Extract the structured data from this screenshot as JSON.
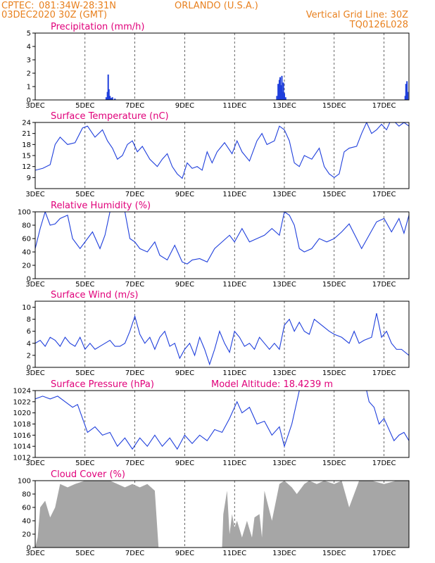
{
  "header": {
    "source": "CPTEC:",
    "coords": "081:34W-28:31N",
    "location": "ORLANDO (U.S.A.)",
    "run": "03DEC2020 30Z (GMT)",
    "grid_note": "Vertical Grid Line: 30Z",
    "code": "TQ0126L028"
  },
  "x_axis": {
    "start_day": 3,
    "end_day": 18,
    "tick_labels": [
      {
        "label": "3DEC",
        "day": 3
      },
      {
        "label": "5DEC",
        "day": 5
      },
      {
        "label": "7DEC",
        "day": 7
      },
      {
        "label": "9DEC",
        "day": 9
      },
      {
        "label": "11DEC",
        "day": 11
      },
      {
        "label": "13DEC",
        "day": 13
      },
      {
        "label": "15DEC",
        "day": 15
      },
      {
        "label": "17DEC",
        "day": 17
      }
    ]
  },
  "chart_data": [
    {
      "id": "precip",
      "type": "bar",
      "title": "Precipitation (mm/h)",
      "ylim": [
        0,
        5
      ],
      "yticks": [
        0,
        1,
        2,
        3,
        4,
        5
      ],
      "color": "#1f3fdc",
      "values": [
        [
          5.85,
          0.2
        ],
        [
          5.9,
          0.6
        ],
        [
          5.93,
          1.9
        ],
        [
          5.96,
          0.8
        ],
        [
          6.0,
          0.3
        ],
        [
          6.05,
          0.15
        ],
        [
          6.1,
          0.2
        ],
        [
          6.2,
          0.1
        ],
        [
          12.7,
          0.3
        ],
        [
          12.75,
          1.2
        ],
        [
          12.78,
          0.8
        ],
        [
          12.8,
          1.5
        ],
        [
          12.83,
          1.7
        ],
        [
          12.86,
          1.1
        ],
        [
          12.9,
          1.8
        ],
        [
          12.93,
          0.6
        ],
        [
          12.96,
          1.3
        ],
        [
          13.0,
          0.5
        ],
        [
          13.05,
          0.2
        ],
        [
          17.85,
          0.3
        ],
        [
          17.88,
          1.2
        ],
        [
          17.92,
          1.4
        ],
        [
          17.95,
          0.6
        ]
      ]
    },
    {
      "id": "temp",
      "type": "line",
      "title": "Surface Temperature (nC)",
      "ylim": [
        6,
        24
      ],
      "yticks": [
        9,
        12,
        15,
        18,
        21,
        24
      ],
      "color": "#1f3fdc",
      "values": [
        [
          3,
          11
        ],
        [
          3.3,
          11.5
        ],
        [
          3.6,
          12.5
        ],
        [
          3.8,
          18
        ],
        [
          4.0,
          20
        ],
        [
          4.3,
          18
        ],
        [
          4.6,
          18.5
        ],
        [
          4.9,
          22.5
        ],
        [
          5.1,
          23
        ],
        [
          5.4,
          20
        ],
        [
          5.7,
          22
        ],
        [
          5.9,
          19
        ],
        [
          6.1,
          17
        ],
        [
          6.3,
          14
        ],
        [
          6.5,
          15
        ],
        [
          6.7,
          18
        ],
        [
          6.9,
          19
        ],
        [
          7.1,
          16
        ],
        [
          7.3,
          17.5
        ],
        [
          7.6,
          14
        ],
        [
          7.9,
          12
        ],
        [
          8.1,
          14
        ],
        [
          8.3,
          15.5
        ],
        [
          8.5,
          12
        ],
        [
          8.7,
          10
        ],
        [
          8.9,
          8.8
        ],
        [
          9.1,
          13
        ],
        [
          9.3,
          11.5
        ],
        [
          9.5,
          12
        ],
        [
          9.7,
          11
        ],
        [
          9.9,
          16
        ],
        [
          10.1,
          13
        ],
        [
          10.3,
          16
        ],
        [
          10.6,
          18.5
        ],
        [
          10.9,
          15.5
        ],
        [
          11.1,
          19
        ],
        [
          11.3,
          16
        ],
        [
          11.6,
          13.5
        ],
        [
          11.9,
          19
        ],
        [
          12.1,
          21
        ],
        [
          12.3,
          18
        ],
        [
          12.6,
          19
        ],
        [
          12.8,
          23
        ],
        [
          13.0,
          22
        ],
        [
          13.2,
          19
        ],
        [
          13.4,
          13
        ],
        [
          13.6,
          12
        ],
        [
          13.8,
          15
        ],
        [
          14.1,
          14
        ],
        [
          14.4,
          17
        ],
        [
          14.6,
          12
        ],
        [
          14.8,
          10
        ],
        [
          15.0,
          9
        ],
        [
          15.2,
          10
        ],
        [
          15.4,
          16
        ],
        [
          15.6,
          17
        ],
        [
          15.9,
          17.5
        ],
        [
          16.1,
          21
        ],
        [
          16.3,
          24
        ],
        [
          16.5,
          21
        ],
        [
          16.7,
          22
        ],
        [
          16.9,
          23.5
        ],
        [
          17.1,
          22
        ],
        [
          17.3,
          25
        ],
        [
          17.6,
          23
        ],
        [
          17.8,
          24
        ],
        [
          18,
          23
        ]
      ]
    },
    {
      "id": "rh",
      "type": "line",
      "title": "Relative Humidity (%)",
      "ylim": [
        0,
        100
      ],
      "yticks": [
        0,
        20,
        40,
        60,
        80,
        100
      ],
      "color": "#1f3fdc",
      "values": [
        [
          3,
          45
        ],
        [
          3.2,
          75
        ],
        [
          3.4,
          100
        ],
        [
          3.6,
          80
        ],
        [
          3.8,
          82
        ],
        [
          4.0,
          90
        ],
        [
          4.3,
          95
        ],
        [
          4.5,
          60
        ],
        [
          4.8,
          45
        ],
        [
          5.0,
          55
        ],
        [
          5.3,
          70
        ],
        [
          5.6,
          45
        ],
        [
          5.8,
          65
        ],
        [
          6.0,
          100
        ],
        [
          6.2,
          100
        ],
        [
          6.4,
          100
        ],
        [
          6.6,
          100
        ],
        [
          6.8,
          60
        ],
        [
          7.0,
          55
        ],
        [
          7.2,
          45
        ],
        [
          7.5,
          40
        ],
        [
          7.8,
          55
        ],
        [
          8.0,
          35
        ],
        [
          8.3,
          28
        ],
        [
          8.6,
          50
        ],
        [
          8.9,
          25
        ],
        [
          9.1,
          22
        ],
        [
          9.3,
          28
        ],
        [
          9.6,
          30
        ],
        [
          9.9,
          25
        ],
        [
          10.2,
          45
        ],
        [
          10.5,
          55
        ],
        [
          10.8,
          65
        ],
        [
          11.0,
          55
        ],
        [
          11.3,
          75
        ],
        [
          11.6,
          55
        ],
        [
          11.9,
          60
        ],
        [
          12.2,
          65
        ],
        [
          12.5,
          75
        ],
        [
          12.8,
          65
        ],
        [
          13.0,
          100
        ],
        [
          13.2,
          95
        ],
        [
          13.4,
          80
        ],
        [
          13.6,
          45
        ],
        [
          13.8,
          40
        ],
        [
          14.1,
          45
        ],
        [
          14.4,
          60
        ],
        [
          14.7,
          55
        ],
        [
          15.0,
          60
        ],
        [
          15.3,
          70
        ],
        [
          15.6,
          82
        ],
        [
          15.9,
          60
        ],
        [
          16.1,
          45
        ],
        [
          16.4,
          65
        ],
        [
          16.7,
          85
        ],
        [
          17.0,
          90
        ],
        [
          17.3,
          70
        ],
        [
          17.6,
          90
        ],
        [
          17.8,
          68
        ],
        [
          18,
          95
        ]
      ]
    },
    {
      "id": "wind",
      "type": "line",
      "title": "Surface Wind (m/s)",
      "ylim": [
        0,
        11
      ],
      "yticks": [
        0,
        2,
        4,
        6,
        8,
        10
      ],
      "color": "#1f3fdc",
      "values": [
        [
          3,
          4
        ],
        [
          3.2,
          4.5
        ],
        [
          3.4,
          3.5
        ],
        [
          3.6,
          5
        ],
        [
          3.8,
          4.5
        ],
        [
          4.0,
          3.5
        ],
        [
          4.2,
          5
        ],
        [
          4.4,
          4
        ],
        [
          4.6,
          3.5
        ],
        [
          4.8,
          5
        ],
        [
          5.0,
          3
        ],
        [
          5.2,
          4
        ],
        [
          5.4,
          3
        ],
        [
          5.6,
          3.5
        ],
        [
          5.8,
          4
        ],
        [
          6.0,
          4.5
        ],
        [
          6.2,
          3.5
        ],
        [
          6.4,
          3.5
        ],
        [
          6.6,
          4
        ],
        [
          6.8,
          6
        ],
        [
          7.0,
          8.5
        ],
        [
          7.2,
          5.5
        ],
        [
          7.4,
          4
        ],
        [
          7.6,
          5
        ],
        [
          7.8,
          3
        ],
        [
          8.0,
          5
        ],
        [
          8.2,
          6
        ],
        [
          8.4,
          3.5
        ],
        [
          8.6,
          4
        ],
        [
          8.8,
          1.5
        ],
        [
          9.0,
          3
        ],
        [
          9.2,
          4
        ],
        [
          9.4,
          2
        ],
        [
          9.6,
          5
        ],
        [
          9.8,
          3
        ],
        [
          10.0,
          0.5
        ],
        [
          10.2,
          3
        ],
        [
          10.4,
          6
        ],
        [
          10.6,
          4
        ],
        [
          10.8,
          2.5
        ],
        [
          11.0,
          6
        ],
        [
          11.2,
          5
        ],
        [
          11.4,
          3.5
        ],
        [
          11.6,
          4
        ],
        [
          11.8,
          3
        ],
        [
          12.0,
          5
        ],
        [
          12.2,
          4
        ],
        [
          12.4,
          3
        ],
        [
          12.6,
          4
        ],
        [
          12.8,
          3
        ],
        [
          13.0,
          7
        ],
        [
          13.2,
          8
        ],
        [
          13.4,
          6
        ],
        [
          13.6,
          7.5
        ],
        [
          13.8,
          6
        ],
        [
          14.0,
          5.5
        ],
        [
          14.2,
          8
        ],
        [
          14.5,
          7
        ],
        [
          14.8,
          6
        ],
        [
          15.0,
          5.5
        ],
        [
          15.3,
          5
        ],
        [
          15.6,
          4
        ],
        [
          15.8,
          6
        ],
        [
          16.0,
          4
        ],
        [
          16.2,
          4.5
        ],
        [
          16.5,
          5
        ],
        [
          16.7,
          9
        ],
        [
          16.9,
          5
        ],
        [
          17.1,
          6
        ],
        [
          17.3,
          4
        ],
        [
          17.5,
          3
        ],
        [
          17.7,
          3
        ],
        [
          18,
          2
        ]
      ]
    },
    {
      "id": "pressure",
      "type": "line",
      "title": "Surface Pressure (hPa)",
      "annotation": "Model Altitude: 18.4239  m",
      "ylim": [
        1012,
        1024
      ],
      "yticks": [
        1012,
        1014,
        1016,
        1018,
        1020,
        1022,
        1024
      ],
      "color": "#1f3fdc",
      "values": [
        [
          3,
          1022.5
        ],
        [
          3.3,
          1023
        ],
        [
          3.6,
          1022.5
        ],
        [
          3.9,
          1023
        ],
        [
          4.2,
          1022
        ],
        [
          4.5,
          1021
        ],
        [
          4.7,
          1021.5
        ],
        [
          4.9,
          1019
        ],
        [
          5.1,
          1016.5
        ],
        [
          5.4,
          1017.5
        ],
        [
          5.7,
          1016
        ],
        [
          6.0,
          1016.5
        ],
        [
          6.3,
          1014
        ],
        [
          6.6,
          1015.5
        ],
        [
          6.9,
          1013.5
        ],
        [
          7.2,
          1015.5
        ],
        [
          7.5,
          1014
        ],
        [
          7.8,
          1016
        ],
        [
          8.1,
          1014
        ],
        [
          8.4,
          1015.5
        ],
        [
          8.7,
          1013.5
        ],
        [
          9.0,
          1016
        ],
        [
          9.3,
          1014.5
        ],
        [
          9.6,
          1016
        ],
        [
          9.9,
          1015
        ],
        [
          10.2,
          1017
        ],
        [
          10.5,
          1016.5
        ],
        [
          10.8,
          1019
        ],
        [
          11.1,
          1022
        ],
        [
          11.3,
          1020
        ],
        [
          11.6,
          1021
        ],
        [
          11.9,
          1018
        ],
        [
          12.2,
          1018.5
        ],
        [
          12.5,
          1016
        ],
        [
          12.8,
          1017.5
        ],
        [
          13.0,
          1014
        ],
        [
          13.3,
          1018
        ],
        [
          13.6,
          1024
        ],
        [
          14,
          1026
        ],
        [
          16.2,
          1026
        ],
        [
          16.4,
          1022
        ],
        [
          16.6,
          1021
        ],
        [
          16.8,
          1018
        ],
        [
          17.0,
          1019
        ],
        [
          17.2,
          1017
        ],
        [
          17.4,
          1015
        ],
        [
          17.6,
          1016
        ],
        [
          17.8,
          1016.5
        ],
        [
          18,
          1015
        ]
      ]
    },
    {
      "id": "cloud",
      "type": "area",
      "title": "Cloud Cover (%)",
      "ylim": [
        0,
        100
      ],
      "yticks": [
        0,
        20,
        40,
        60,
        80,
        100
      ],
      "color": "#a6a6a6",
      "values": [
        [
          3,
          0
        ],
        [
          3.1,
          15
        ],
        [
          3.2,
          60
        ],
        [
          3.4,
          70
        ],
        [
          3.6,
          45
        ],
        [
          3.8,
          60
        ],
        [
          4.0,
          95
        ],
        [
          4.3,
          90
        ],
        [
          4.6,
          95
        ],
        [
          5.0,
          100
        ],
        [
          5.5,
          100
        ],
        [
          6.0,
          100
        ],
        [
          6.3,
          95
        ],
        [
          6.6,
          90
        ],
        [
          6.9,
          95
        ],
        [
          7.2,
          90
        ],
        [
          7.5,
          95
        ],
        [
          7.8,
          85
        ],
        [
          7.95,
          0
        ],
        [
          10.5,
          0
        ],
        [
          10.55,
          50
        ],
        [
          10.7,
          85
        ],
        [
          10.8,
          20
        ],
        [
          10.9,
          50
        ],
        [
          11.0,
          30
        ],
        [
          11.1,
          40
        ],
        [
          11.3,
          15
        ],
        [
          11.5,
          40
        ],
        [
          11.7,
          15
        ],
        [
          11.8,
          45
        ],
        [
          12.0,
          50
        ],
        [
          12.1,
          15
        ],
        [
          12.2,
          85
        ],
        [
          12.5,
          40
        ],
        [
          12.8,
          95
        ],
        [
          13.0,
          100
        ],
        [
          13.3,
          90
        ],
        [
          13.5,
          80
        ],
        [
          13.8,
          95
        ],
        [
          14.0,
          100
        ],
        [
          14.3,
          95
        ],
        [
          14.6,
          100
        ],
        [
          15.0,
          95
        ],
        [
          15.3,
          100
        ],
        [
          15.6,
          60
        ],
        [
          15.8,
          80
        ],
        [
          16.0,
          100
        ],
        [
          16.5,
          100
        ],
        [
          17.0,
          95
        ],
        [
          17.5,
          100
        ],
        [
          18,
          100
        ]
      ]
    }
  ]
}
